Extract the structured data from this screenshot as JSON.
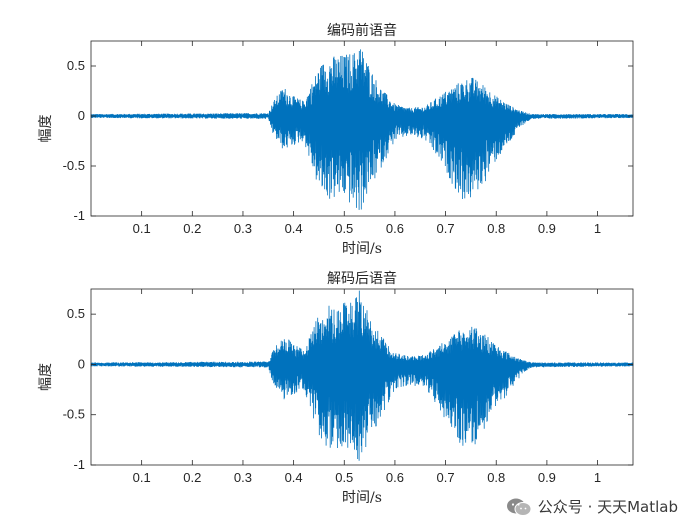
{
  "chart_data": [
    {
      "type": "line",
      "title": "编码前语音",
      "xlabel": "时间/s",
      "ylabel": "幅度",
      "xlim": [
        0,
        1.07
      ],
      "ylim": [
        -1,
        0.75
      ],
      "xticks": [
        "0.1",
        "0.2",
        "0.3",
        "0.4",
        "0.5",
        "0.6",
        "0.7",
        "0.8",
        "0.9",
        "1"
      ],
      "yticks": [
        "-1",
        "-0.5",
        "0",
        "0.5"
      ],
      "series_color": "#0072BD",
      "grid": false,
      "series": [
        {
          "x": [
            0,
            0.35,
            0.36,
            0.38,
            0.4,
            0.42,
            0.45,
            0.47,
            0.5,
            0.52,
            0.53,
            0.55,
            0.57,
            0.6,
            0.63,
            0.66,
            0.7,
            0.73,
            0.75,
            0.78,
            0.8,
            0.83,
            0.85,
            0.87,
            1.07
          ],
          "upper": [
            0.02,
            0.03,
            0.15,
            0.3,
            0.2,
            0.15,
            0.5,
            0.6,
            0.62,
            0.65,
            0.75,
            0.5,
            0.3,
            0.12,
            0.08,
            0.1,
            0.25,
            0.35,
            0.4,
            0.3,
            0.2,
            0.1,
            0.05,
            0.02,
            0.02
          ],
          "lower": [
            -0.02,
            -0.03,
            -0.2,
            -0.35,
            -0.3,
            -0.25,
            -0.75,
            -0.85,
            -0.82,
            -0.95,
            -1.0,
            -0.75,
            -0.55,
            -0.25,
            -0.2,
            -0.25,
            -0.55,
            -0.85,
            -0.85,
            -0.65,
            -0.45,
            -0.25,
            -0.1,
            -0.03,
            -0.02
          ]
        }
      ]
    },
    {
      "type": "line",
      "title": "解码后语音",
      "xlabel": "时间/s",
      "ylabel": "幅度",
      "xlim": [
        0,
        1.07
      ],
      "ylim": [
        -1,
        0.75
      ],
      "xticks": [
        "0.1",
        "0.2",
        "0.3",
        "0.4",
        "0.5",
        "0.6",
        "0.7",
        "0.8",
        "0.9",
        "1"
      ],
      "yticks": [
        "-1",
        "-0.5",
        "0",
        "0.5"
      ],
      "series_color": "#0072BD",
      "grid": false,
      "series": [
        {
          "x": [
            0,
            0.35,
            0.36,
            0.38,
            0.4,
            0.42,
            0.45,
            0.47,
            0.5,
            0.52,
            0.53,
            0.55,
            0.57,
            0.6,
            0.63,
            0.66,
            0.7,
            0.73,
            0.75,
            0.78,
            0.8,
            0.83,
            0.85,
            0.87,
            1.07
          ],
          "upper": [
            0.02,
            0.03,
            0.15,
            0.3,
            0.2,
            0.15,
            0.5,
            0.6,
            0.62,
            0.65,
            0.75,
            0.5,
            0.3,
            0.12,
            0.08,
            0.1,
            0.25,
            0.35,
            0.4,
            0.3,
            0.2,
            0.1,
            0.05,
            0.02,
            0.02
          ],
          "lower": [
            -0.02,
            -0.03,
            -0.2,
            -0.35,
            -0.3,
            -0.25,
            -0.75,
            -0.85,
            -0.82,
            -0.95,
            -1.0,
            -0.75,
            -0.55,
            -0.25,
            -0.2,
            -0.25,
            -0.55,
            -0.85,
            -0.85,
            -0.65,
            -0.45,
            -0.25,
            -0.1,
            -0.03,
            -0.02
          ]
        }
      ]
    }
  ],
  "watermark": {
    "text": "公众号 · 天天Matlab",
    "icon": "wechat-icon"
  }
}
